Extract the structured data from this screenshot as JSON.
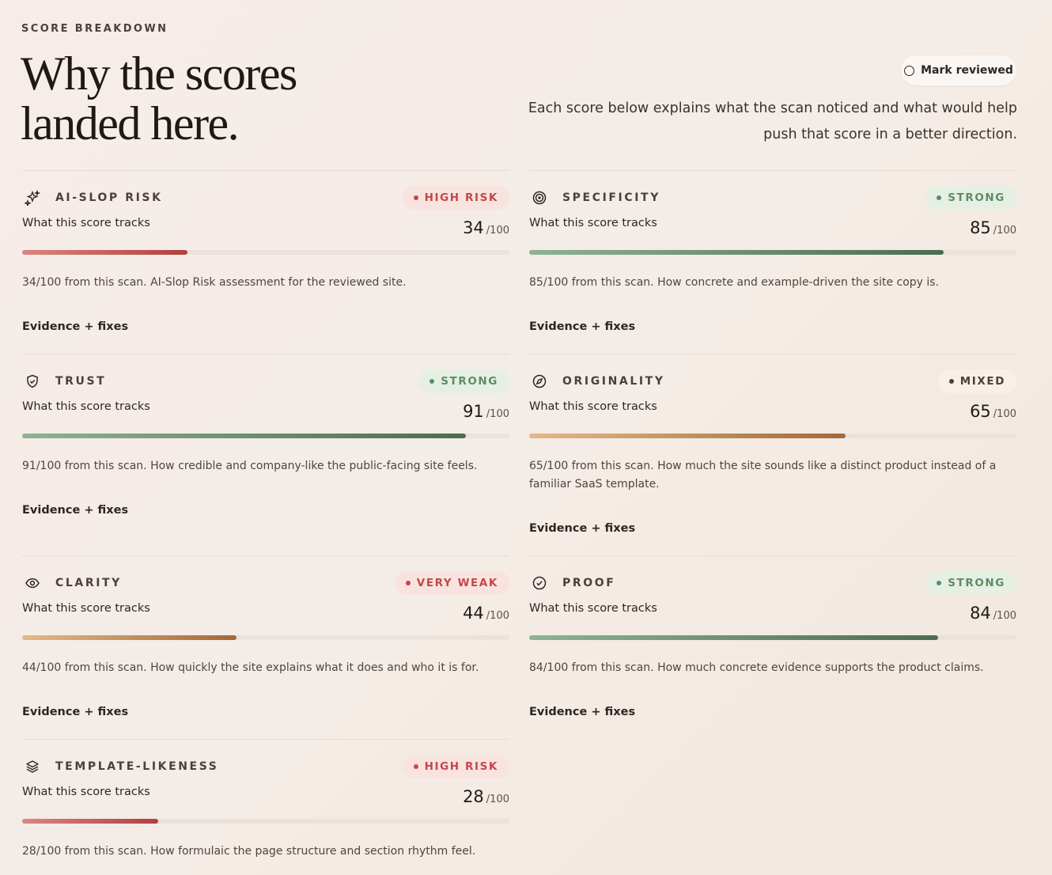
{
  "header": {
    "eyebrow": "SCORE BREAKDOWN",
    "title_lines": [
      "Why the scores",
      "landed here."
    ],
    "button": "Mark reviewed",
    "description": "Each score below explains what the scan noticed and what would help push that score in a better direction."
  },
  "score_range": [
    0,
    100
  ],
  "cards": [
    {
      "name": "AI-SLOP RISK",
      "status": "HIGH RISK",
      "tracks": "What this score tracks",
      "score": 34,
      "score_suffix": "/100",
      "description": "34/100 from this scan. AI-Slop Risk assessment for the reviewed site.",
      "evidence": "Evidence + fixes",
      "status_color": "#c2484b",
      "status_bg": "#f8e3df",
      "bar_colors": [
        "#dc8580",
        "#b33f3b"
      ]
    },
    {
      "name": "SPECIFICITY",
      "status": "STRONG",
      "tracks": "What this score tracks",
      "score": 85,
      "score_suffix": "/100",
      "description": "85/100 from this scan. How concrete and example-driven the site copy is.",
      "evidence": "Evidence + fixes",
      "status_color": "#5e8c66",
      "status_bg": "#e6efe3",
      "bar_colors": [
        "#8db393",
        "#4d6c50"
      ]
    },
    {
      "name": "TRUST",
      "status": "STRONG",
      "tracks": "What this score tracks",
      "score": 91,
      "score_suffix": "/100",
      "description": "91/100 from this scan. How credible and company-like the public-facing site feels.",
      "evidence": "Evidence + fixes",
      "status_color": "#5e8c66",
      "status_bg": "#e6efe3",
      "bar_colors": [
        "#8db393",
        "#4d6c50"
      ]
    },
    {
      "name": "ORIGINALITY",
      "status": "MIXED",
      "tracks": "What this score tracks",
      "score": 65,
      "score_suffix": "/100",
      "description": "65/100 from this scan. How much the site sounds like a distinct product instead of a familiar SaaS template.",
      "evidence": "Evidence + fixes",
      "status_color": "#4a3f39",
      "status_bg": "#f9efe9",
      "bar_colors": [
        "#e4b88a",
        "#a3693a"
      ]
    },
    {
      "name": "CLARITY",
      "status": "VERY WEAK",
      "tracks": "What this score tracks",
      "score": 44,
      "score_suffix": "/100",
      "description": "44/100 from this scan. How quickly the site explains what it does and who it is for.",
      "evidence": "Evidence + fixes",
      "status_color": "#c2484b",
      "status_bg": "#f8e3df",
      "bar_colors": [
        "#e4b88a",
        "#a3693a"
      ]
    },
    {
      "name": "PROOF",
      "status": "STRONG",
      "tracks": "What this score tracks",
      "score": 84,
      "score_suffix": "/100",
      "description": "84/100 from this scan. How much concrete evidence supports the product claims.",
      "evidence": "Evidence + fixes",
      "status_color": "#5e8c66",
      "status_bg": "#e6efe3",
      "bar_colors": [
        "#8db393",
        "#4d6c50"
      ]
    },
    {
      "name": "TEMPLATE-LIKENESS",
      "status": "HIGH RISK",
      "tracks": "What this score tracks",
      "score": 28,
      "score_suffix": "/100",
      "description": "28/100 from this scan. How formulaic the page structure and section rhythm feel.",
      "status_color": "#c2484b",
      "status_bg": "#f8e3df",
      "bar_colors": [
        "#dc8580",
        "#b33f3b"
      ]
    }
  ]
}
